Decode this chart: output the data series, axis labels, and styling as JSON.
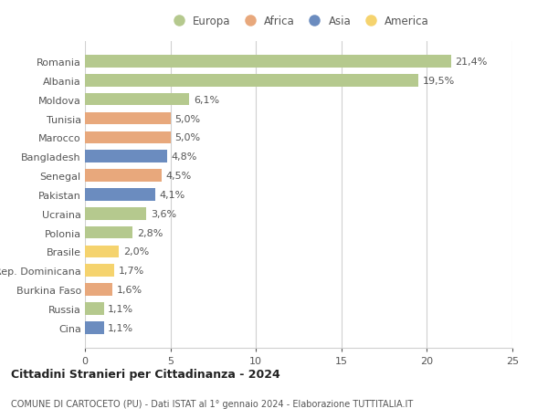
{
  "categories": [
    "Romania",
    "Albania",
    "Moldova",
    "Tunisia",
    "Marocco",
    "Bangladesh",
    "Senegal",
    "Pakistan",
    "Ucraina",
    "Polonia",
    "Brasile",
    "Rep. Dominicana",
    "Burkina Faso",
    "Russia",
    "Cina"
  ],
  "values": [
    21.4,
    19.5,
    6.1,
    5.0,
    5.0,
    4.8,
    4.5,
    4.1,
    3.6,
    2.8,
    2.0,
    1.7,
    1.6,
    1.1,
    1.1
  ],
  "labels": [
    "21,4%",
    "19,5%",
    "6,1%",
    "5,0%",
    "5,0%",
    "4,8%",
    "4,5%",
    "4,1%",
    "3,6%",
    "2,8%",
    "2,0%",
    "1,7%",
    "1,6%",
    "1,1%",
    "1,1%"
  ],
  "continents": [
    "Europa",
    "Europa",
    "Europa",
    "Africa",
    "Africa",
    "Asia",
    "Africa",
    "Asia",
    "Europa",
    "Europa",
    "America",
    "America",
    "Africa",
    "Europa",
    "Asia"
  ],
  "colors": {
    "Europa": "#b5c98e",
    "Africa": "#e8a87c",
    "Asia": "#6b8cbf",
    "America": "#f5d36e"
  },
  "xlim": [
    0,
    25
  ],
  "xticks": [
    0,
    5,
    10,
    15,
    20,
    25
  ],
  "legend_order": [
    "Europa",
    "Africa",
    "Asia",
    "America"
  ],
  "title": "Cittadini Stranieri per Cittadinanza - 2024",
  "subtitle": "COMUNE DI CARTOCETO (PU) - Dati ISTAT al 1° gennaio 2024 - Elaborazione TUTTITALIA.IT",
  "background_color": "#ffffff",
  "grid_color": "#d0d0d0",
  "bar_height": 0.65,
  "label_fontsize": 8,
  "ytick_fontsize": 8,
  "xtick_fontsize": 8
}
